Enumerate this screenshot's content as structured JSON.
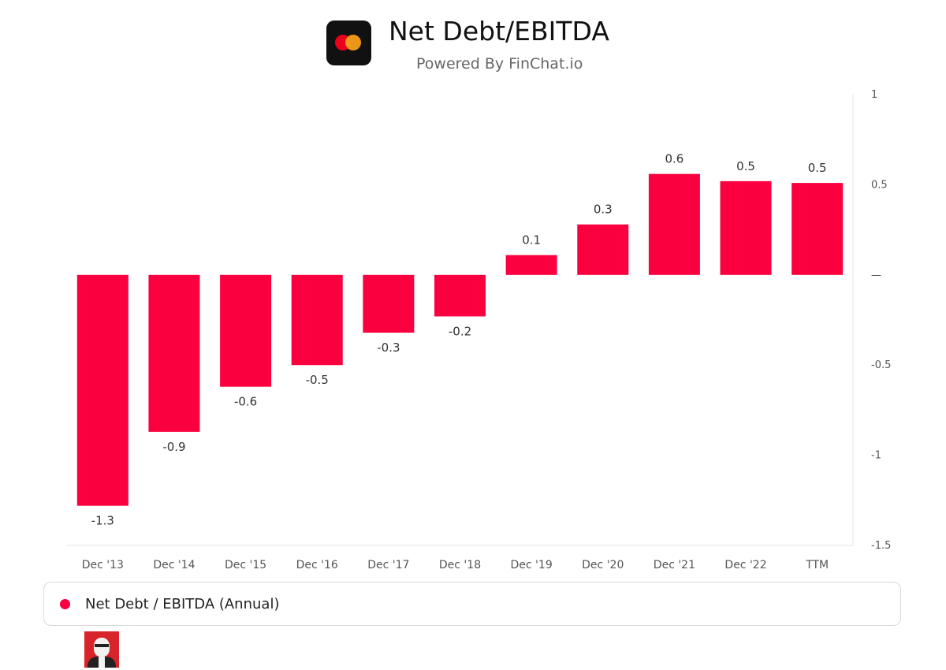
{
  "header": {
    "title": "Net Debt/EBITDA",
    "subtitle": "Powered By FinChat.io",
    "logo_icon": "mastercard-logo",
    "logo_colors": [
      "#eb001b",
      "#f79e1b"
    ]
  },
  "legend": {
    "label": "Net Debt / EBITDA (Annual)"
  },
  "colors": {
    "bar": "#fa003f",
    "axis_text": "#555555",
    "gridline": "#e6e6e6"
  },
  "chart_data": {
    "type": "bar",
    "title": "Net Debt/EBITDA",
    "categories": [
      "Dec '13",
      "Dec '14",
      "Dec '15",
      "Dec '16",
      "Dec '17",
      "Dec '18",
      "Dec '19",
      "Dec '20",
      "Dec '21",
      "Dec '22",
      "TTM"
    ],
    "series": [
      {
        "name": "Net Debt / EBITDA (Annual)",
        "values": [
          -1.28,
          -0.87,
          -0.62,
          -0.5,
          -0.32,
          -0.23,
          0.11,
          0.28,
          0.56,
          0.52,
          0.51
        ],
        "labels": [
          "-1.3",
          "-0.9",
          "-0.6",
          "-0.5",
          "-0.3",
          "-0.2",
          "0.1",
          "0.3",
          "0.6",
          "0.5",
          "0.5"
        ]
      }
    ],
    "ylim": [
      -1.5,
      1
    ],
    "yticks": [
      1,
      0.5,
      0,
      -0.5,
      -1,
      -1.5
    ],
    "ytick_labels": [
      "1",
      "0.5",
      "—",
      "-0.5",
      "-1",
      "-1.5"
    ],
    "y_axis_position": "right",
    "grid": false,
    "legend_position": "bottom"
  },
  "footer": {
    "avatar_icon": "user-avatar"
  }
}
